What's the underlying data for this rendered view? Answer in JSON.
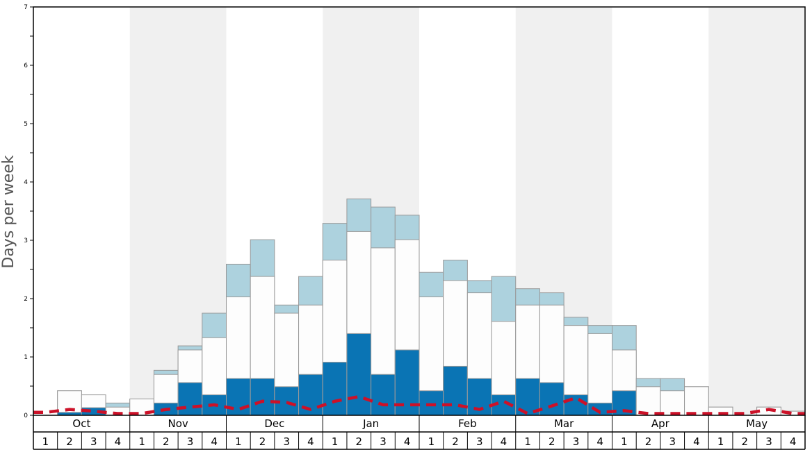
{
  "chart_data": {
    "type": "bar",
    "ylabel": "Days per week",
    "ylim": [
      0,
      7
    ],
    "yticks": [
      "0",
      "1",
      "2",
      "3",
      "4",
      "5",
      "6",
      "7"
    ],
    "months": [
      "Oct",
      "Nov",
      "Dec",
      "Jan",
      "Feb",
      "Mar",
      "Apr",
      "May"
    ],
    "weeks_per_month": [
      "1",
      "2",
      "3",
      "4"
    ],
    "shaded_months": [
      "Nov",
      "Jan",
      "Mar",
      "May"
    ],
    "colors": {
      "dark": "#0a74b4",
      "white": "#fdfdfd",
      "light": "#add2de",
      "line": "#cc1128",
      "band": "#f0f0f0",
      "bar_edge": "#999999"
    },
    "series": [
      {
        "values": [
          0.0,
          0.05,
          0.13,
          0.0,
          0.0,
          0.21,
          0.56,
          0.35,
          0.63,
          0.63,
          0.49,
          0.7,
          0.91,
          1.4,
          0.7,
          1.12,
          0.42,
          0.84,
          0.63,
          0.35,
          0.63,
          0.56,
          0.35,
          0.21,
          0.42,
          0.0,
          0.0,
          0.0,
          0.0,
          0.0,
          0.0,
          0.0
        ]
      },
      {
        "values": [
          0.0,
          0.42,
          0.35,
          0.14,
          0.28,
          0.7,
          1.12,
          1.33,
          2.03,
          2.38,
          1.75,
          1.89,
          2.66,
          3.15,
          2.87,
          3.01,
          2.03,
          2.31,
          2.1,
          1.61,
          1.89,
          1.89,
          1.54,
          1.4,
          1.12,
          0.49,
          0.42,
          0.49,
          0.14,
          0.0,
          0.14,
          0.07
        ]
      },
      {
        "values": [
          0.0,
          0.42,
          0.35,
          0.21,
          0.28,
          0.77,
          1.19,
          1.75,
          2.59,
          3.01,
          1.89,
          2.38,
          3.29,
          3.71,
          3.57,
          3.43,
          2.45,
          2.66,
          2.31,
          2.38,
          2.17,
          2.1,
          1.68,
          1.54,
          1.54,
          0.63,
          0.63,
          0.49,
          0.14,
          0.0,
          0.14,
          0.07
        ]
      },
      {
        "values": [
          0.05,
          0.1,
          0.07,
          0.03,
          0.03,
          0.1,
          0.14,
          0.18,
          0.1,
          0.24,
          0.22,
          0.1,
          0.24,
          0.32,
          0.18,
          0.18,
          0.18,
          0.18,
          0.1,
          0.24,
          0.03,
          0.16,
          0.3,
          0.05,
          0.08,
          0.03,
          0.03,
          0.03,
          0.03,
          0.03,
          0.1,
          0.03
        ]
      }
    ]
  }
}
